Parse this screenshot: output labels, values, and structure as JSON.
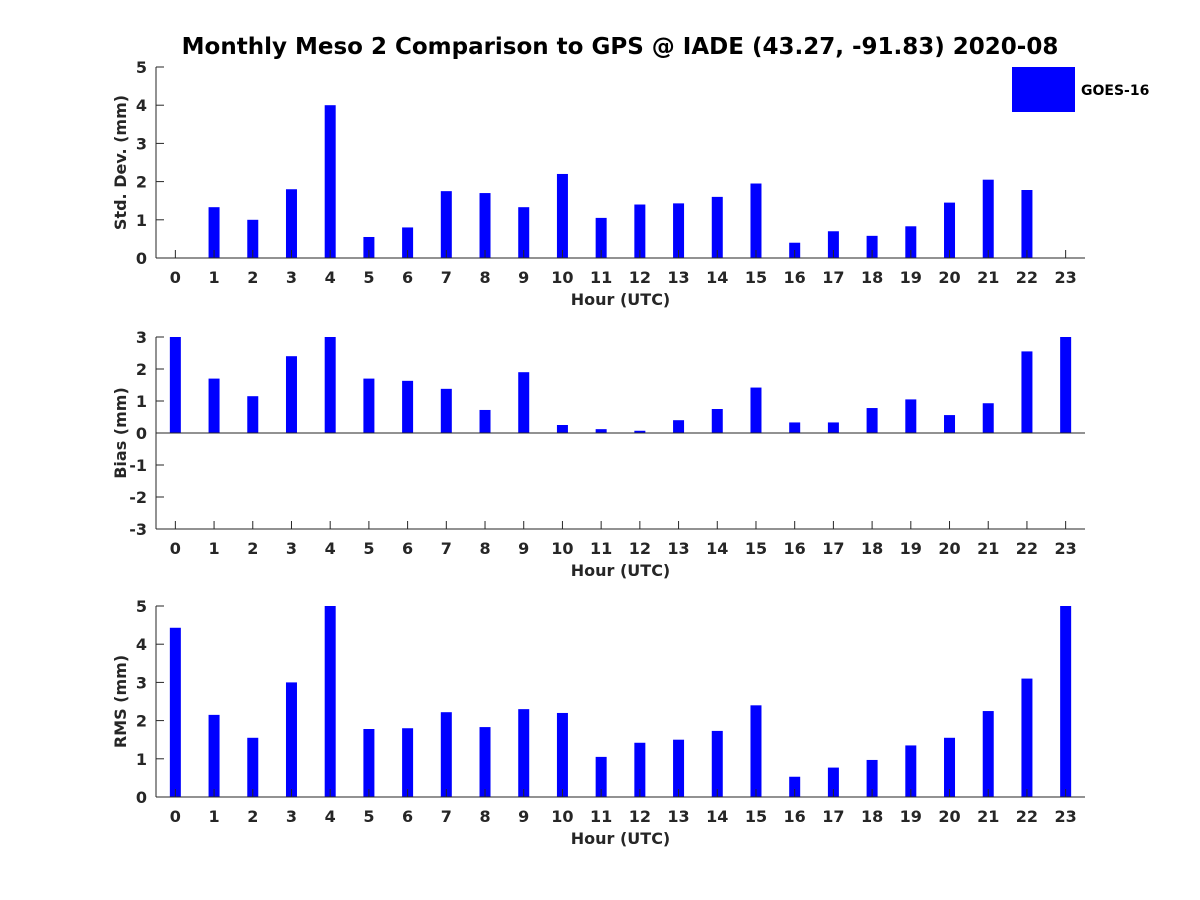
{
  "chart_data": {
    "title": "Monthly Meso 2 Comparison to GPS @ IADE (43.27, -91.83) 2020-08",
    "legend": {
      "label": "GOES-16",
      "color": "#0000ff",
      "placement": "top-right"
    },
    "bar_color": "#0000ff",
    "panels": [
      {
        "type": "bar",
        "name": "std-dev",
        "ylabel": "Std. Dev. (mm)",
        "xlabel": "Hour (UTC)",
        "ylim": [
          0,
          5
        ],
        "yticks": [
          0,
          1,
          2,
          3,
          4,
          5
        ],
        "categories": [
          "0",
          "1",
          "2",
          "3",
          "4",
          "5",
          "6",
          "7",
          "8",
          "9",
          "10",
          "11",
          "12",
          "13",
          "14",
          "15",
          "16",
          "17",
          "18",
          "19",
          "20",
          "21",
          "22",
          "23"
        ],
        "values": [
          0,
          1.33,
          1.0,
          1.8,
          4.0,
          0.55,
          0.8,
          1.75,
          1.7,
          1.33,
          2.2,
          1.05,
          1.4,
          1.43,
          1.6,
          1.95,
          0.4,
          0.7,
          0.58,
          0.83,
          1.45,
          2.05,
          1.78,
          0
        ]
      },
      {
        "type": "bar",
        "name": "bias",
        "ylabel": "Bias (mm)",
        "xlabel": "Hour (UTC)",
        "ylim": [
          -3,
          3
        ],
        "yticks": [
          -3,
          -2,
          -1,
          0,
          1,
          2,
          3
        ],
        "categories": [
          "0",
          "1",
          "2",
          "3",
          "4",
          "5",
          "6",
          "7",
          "8",
          "9",
          "10",
          "11",
          "12",
          "13",
          "14",
          "15",
          "16",
          "17",
          "18",
          "19",
          "20",
          "21",
          "22",
          "23"
        ],
        "values": [
          3.0,
          1.7,
          1.15,
          2.4,
          3.0,
          1.7,
          1.63,
          1.38,
          0.72,
          1.9,
          0.25,
          0.12,
          0.07,
          0.4,
          0.75,
          1.42,
          0.33,
          0.33,
          0.78,
          1.05,
          0.56,
          0.93,
          2.55,
          3.0
        ]
      },
      {
        "type": "bar",
        "name": "rms",
        "ylabel": "RMS (mm)",
        "xlabel": "Hour (UTC)",
        "ylim": [
          0,
          5
        ],
        "yticks": [
          0,
          1,
          2,
          3,
          4,
          5
        ],
        "categories": [
          "0",
          "1",
          "2",
          "3",
          "4",
          "5",
          "6",
          "7",
          "8",
          "9",
          "10",
          "11",
          "12",
          "13",
          "14",
          "15",
          "16",
          "17",
          "18",
          "19",
          "20",
          "21",
          "22",
          "23"
        ],
        "values": [
          4.43,
          2.15,
          1.55,
          3.0,
          5.0,
          1.78,
          1.8,
          2.22,
          1.83,
          2.3,
          2.2,
          1.05,
          1.42,
          1.5,
          1.73,
          2.4,
          0.53,
          0.77,
          0.97,
          1.35,
          1.55,
          2.25,
          3.1,
          5.0
        ]
      }
    ]
  }
}
